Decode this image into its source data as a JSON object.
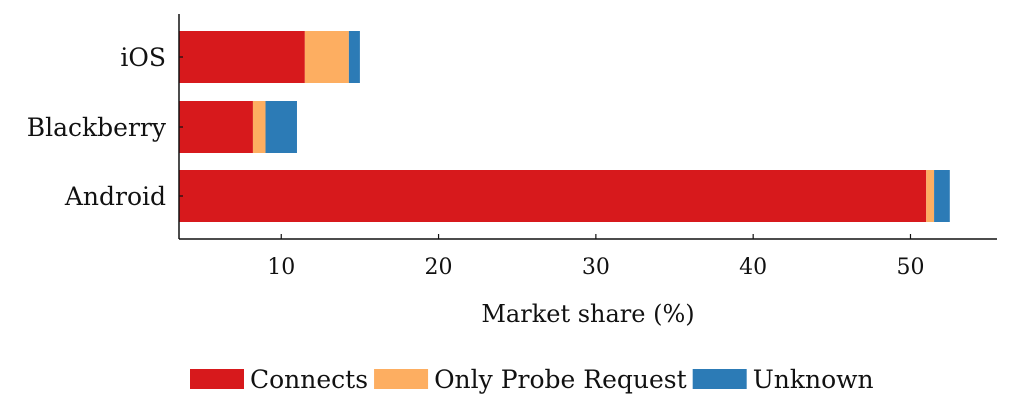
{
  "chart_data": {
    "type": "bar",
    "orientation": "horizontal",
    "stacked": true,
    "categories": [
      "Android",
      "Blackberry",
      "iOS"
    ],
    "series": [
      {
        "name": "Connects",
        "values": [
          51.0,
          8.2,
          11.5
        ],
        "color": "#d7191c"
      },
      {
        "name": "Only Probe Request",
        "values": [
          0.5,
          0.8,
          2.8
        ],
        "color": "#fdae61"
      },
      {
        "name": "Unknown",
        "values": [
          1.0,
          2.0,
          0.7
        ],
        "color": "#2c7bb6"
      }
    ],
    "xlabel": "Market share (%)",
    "ylabel": "",
    "xlim": [
      3.5,
      55.5
    ],
    "xticks": [
      10,
      20,
      30,
      40,
      50
    ],
    "grid": false,
    "legend_position": "bottom"
  }
}
